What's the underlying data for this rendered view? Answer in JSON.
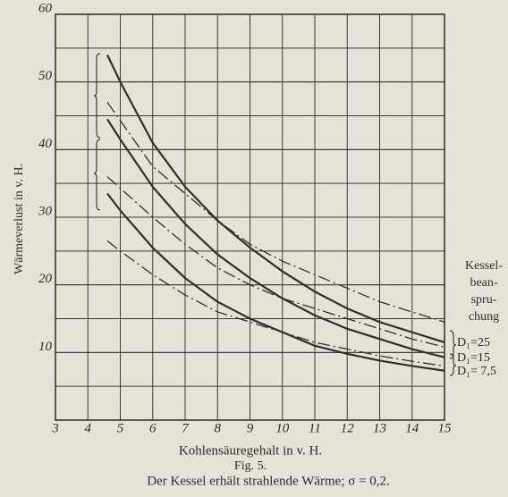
{
  "chart_data": {
    "type": "line",
    "y_label": "Wärmeverlust in v. H.",
    "x_label": "Kohlensäuregehalt in v. H.",
    "figure_label": "Fig. 5.",
    "caption": "Der Kessel erhält strahlende Wärme; σ = 0,2.",
    "legend_title": [
      "Kessel-",
      "bean-",
      "spru-",
      "chung"
    ],
    "xlim": [
      3,
      15
    ],
    "xticks": [
      3,
      4,
      5,
      6,
      7,
      8,
      9,
      10,
      11,
      12,
      13,
      14,
      15
    ],
    "ylim": [
      0,
      60
    ],
    "yticks": [
      10,
      20,
      30,
      40,
      50,
      60
    ],
    "y_minor_grid": 5,
    "grid": true,
    "series": [
      {
        "name": "D₁=25",
        "style": "solid",
        "color": "#2e2e2e",
        "x": [
          4.6,
          5,
          6,
          7,
          8,
          9,
          10,
          11,
          12,
          13,
          14,
          15
        ],
        "values": [
          54,
          50,
          41,
          34.5,
          29.5,
          25.5,
          22,
          19,
          16.5,
          14.5,
          13,
          11.5
        ]
      },
      {
        "name": "D₁=15",
        "style": "solid",
        "color": "#2e2e2e",
        "x": [
          4.6,
          5,
          6,
          7,
          8,
          9,
          10,
          11,
          12,
          13,
          14,
          15
        ],
        "values": [
          44.5,
          41.5,
          34.5,
          29,
          24.5,
          21,
          18,
          15.5,
          13.5,
          12,
          10.5,
          9.3
        ]
      },
      {
        "name": "D₁= 7,5",
        "style": "solid",
        "color": "#2e2e2e",
        "x": [
          4.6,
          5,
          6,
          7,
          8,
          9,
          10,
          11,
          12,
          13,
          14,
          15
        ],
        "values": [
          33.5,
          31,
          25.5,
          21,
          17.5,
          15,
          13,
          11,
          9.8,
          8.8,
          8,
          7.3
        ]
      },
      {
        "style": "dashdot",
        "color": "#2e2e2e",
        "x": [
          4.6,
          6,
          8,
          9,
          10,
          11,
          12,
          13,
          14,
          15
        ],
        "values": [
          47,
          37.5,
          29.5,
          26,
          23.5,
          21.5,
          19.5,
          17.5,
          16,
          14.5
        ]
      },
      {
        "style": "dashdot",
        "color": "#2e2e2e",
        "x": [
          4.6,
          6,
          7,
          8,
          9,
          10,
          11,
          12,
          13,
          14,
          15
        ],
        "values": [
          36,
          30,
          26,
          22.5,
          20,
          18,
          16.5,
          15,
          13.5,
          12,
          10.8
        ]
      },
      {
        "style": "dashdot",
        "color": "#2e2e2e",
        "x": [
          4.6,
          5,
          6,
          7,
          8,
          9,
          10,
          11,
          12,
          13,
          14,
          15
        ],
        "values": [
          26.5,
          25,
          21.5,
          18.5,
          16,
          14.5,
          13,
          11.5,
          10.5,
          9.5,
          8.7,
          8
        ]
      }
    ]
  }
}
